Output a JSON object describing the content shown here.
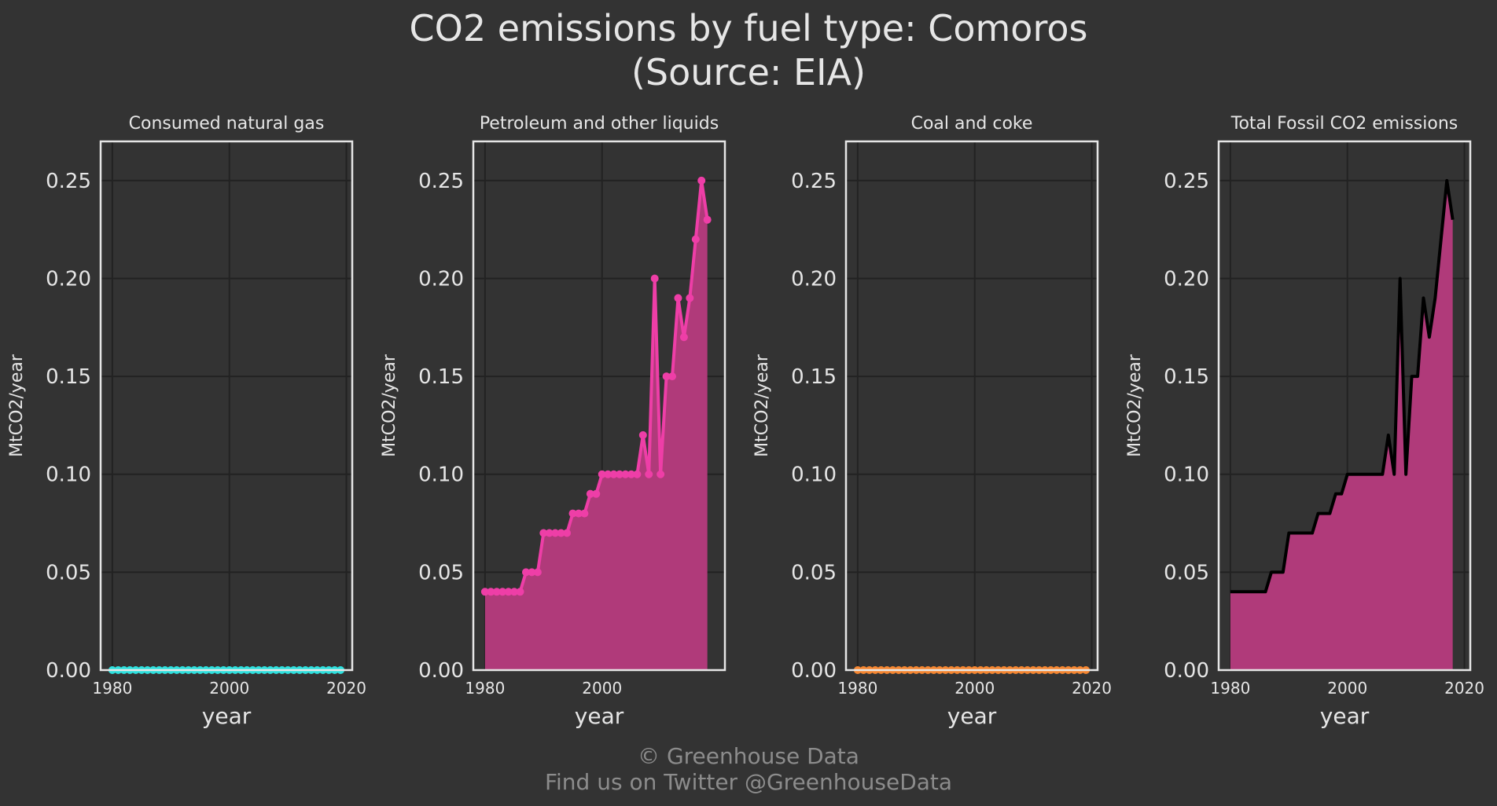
{
  "figure": {
    "title_line1": "CO2 emissions by fuel type: Comoros",
    "title_line2": "(Source: EIA)",
    "footer_line1": "© Greenhouse Data",
    "footer_line2": "Find us on Twitter @GreenhouseData"
  },
  "colors": {
    "background": "#333333",
    "grid": "#222222",
    "frame": "#e6e6e6",
    "natural_gas": "#2ee0de",
    "petroleum": "#ee3ea7",
    "petroleum_fill": "#b03a7a",
    "coal": "#f58631",
    "total_line": "#000000",
    "total_fill": "#b03a7a"
  },
  "chart_data": [
    {
      "type": "line",
      "title": "Consumed natural gas",
      "xlabel": "year",
      "ylabel": "MtCO2/year",
      "xlim": [
        1978,
        2021
      ],
      "ylim": [
        0,
        0.27
      ],
      "xticks": [
        1980,
        2000,
        2020
      ],
      "xtick_labels": [
        "1980",
        "2000",
        "2020"
      ],
      "yticks": [
        0,
        0.05,
        0.1,
        0.15,
        0.2,
        0.25
      ],
      "ytick_labels": [
        "0.00",
        "0.05",
        "0.10",
        "0.15",
        "0.20",
        "0.25"
      ],
      "grid": true,
      "color": "natural_gas",
      "markers": true,
      "fill": false,
      "x": [
        1980,
        1981,
        1982,
        1983,
        1984,
        1985,
        1986,
        1987,
        1988,
        1989,
        1990,
        1991,
        1992,
        1993,
        1994,
        1995,
        1996,
        1997,
        1998,
        1999,
        2000,
        2001,
        2002,
        2003,
        2004,
        2005,
        2006,
        2007,
        2008,
        2009,
        2010,
        2011,
        2012,
        2013,
        2014,
        2015,
        2016,
        2017,
        2018,
        2019
      ],
      "y": [
        0,
        0,
        0,
        0,
        0,
        0,
        0,
        0,
        0,
        0,
        0,
        0,
        0,
        0,
        0,
        0,
        0,
        0,
        0,
        0,
        0,
        0,
        0,
        0,
        0,
        0,
        0,
        0,
        0,
        0,
        0,
        0,
        0,
        0,
        0,
        0,
        0,
        0,
        0,
        0
      ]
    },
    {
      "type": "area",
      "title": "Petroleum and other liquids",
      "xlabel": "year",
      "ylabel": "MtCO2/year",
      "xlim": [
        1978,
        2021
      ],
      "ylim": [
        0,
        0.27
      ],
      "xticks": [
        1980,
        2000
      ],
      "xtick_labels": [
        "1980",
        "2000"
      ],
      "yticks": [
        0,
        0.05,
        0.1,
        0.15,
        0.2,
        0.25
      ],
      "ytick_labels": [
        "0.00",
        "0.05",
        "0.10",
        "0.15",
        "0.20",
        "0.25"
      ],
      "grid": true,
      "color": "petroleum",
      "fill_color": "petroleum_fill",
      "markers": true,
      "fill": true,
      "x": [
        1980,
        1981,
        1982,
        1983,
        1984,
        1985,
        1986,
        1987,
        1988,
        1989,
        1990,
        1991,
        1992,
        1993,
        1994,
        1995,
        1996,
        1997,
        1998,
        1999,
        2000,
        2001,
        2002,
        2003,
        2004,
        2005,
        2006,
        2007,
        2008,
        2009,
        2010,
        2011,
        2012,
        2013,
        2014,
        2015,
        2016,
        2017,
        2018
      ],
      "y": [
        0.04,
        0.04,
        0.04,
        0.04,
        0.04,
        0.04,
        0.04,
        0.05,
        0.05,
        0.05,
        0.07,
        0.07,
        0.07,
        0.07,
        0.07,
        0.08,
        0.08,
        0.08,
        0.09,
        0.09,
        0.1,
        0.1,
        0.1,
        0.1,
        0.1,
        0.1,
        0.1,
        0.12,
        0.1,
        0.2,
        0.1,
        0.15,
        0.15,
        0.19,
        0.17,
        0.19,
        0.22,
        0.25,
        0.23
      ]
    },
    {
      "type": "line",
      "title": "Coal and coke",
      "xlabel": "year",
      "ylabel": "MtCO2/year",
      "xlim": [
        1978,
        2021
      ],
      "ylim": [
        0,
        0.27
      ],
      "xticks": [
        1980,
        2000,
        2020
      ],
      "xtick_labels": [
        "1980",
        "2000",
        "2020"
      ],
      "yticks": [
        0,
        0.05,
        0.1,
        0.15,
        0.2,
        0.25
      ],
      "ytick_labels": [
        "0.00",
        "0.05",
        "0.10",
        "0.15",
        "0.20",
        "0.25"
      ],
      "grid": true,
      "color": "coal",
      "markers": true,
      "fill": false,
      "x": [
        1980,
        1981,
        1982,
        1983,
        1984,
        1985,
        1986,
        1987,
        1988,
        1989,
        1990,
        1991,
        1992,
        1993,
        1994,
        1995,
        1996,
        1997,
        1998,
        1999,
        2000,
        2001,
        2002,
        2003,
        2004,
        2005,
        2006,
        2007,
        2008,
        2009,
        2010,
        2011,
        2012,
        2013,
        2014,
        2015,
        2016,
        2017,
        2018,
        2019
      ],
      "y": [
        0,
        0,
        0,
        0,
        0,
        0,
        0,
        0,
        0,
        0,
        0,
        0,
        0,
        0,
        0,
        0,
        0,
        0,
        0,
        0,
        0,
        0,
        0,
        0,
        0,
        0,
        0,
        0,
        0,
        0,
        0,
        0,
        0,
        0,
        0,
        0,
        0,
        0,
        0,
        0
      ]
    },
    {
      "type": "area",
      "title": "Total Fossil CO2 emissions",
      "xlabel": "year",
      "ylabel": "MtCO2/year",
      "xlim": [
        1978,
        2021
      ],
      "ylim": [
        0,
        0.27
      ],
      "xticks": [
        1980,
        2000,
        2020
      ],
      "xtick_labels": [
        "1980",
        "2000",
        "2020"
      ],
      "yticks": [
        0,
        0.05,
        0.1,
        0.15,
        0.2,
        0.25
      ],
      "ytick_labels": [
        "0.00",
        "0.05",
        "0.10",
        "0.15",
        "0.20",
        "0.25"
      ],
      "grid": true,
      "color": "total_line",
      "fill_color": "total_fill",
      "markers": false,
      "fill": true,
      "x": [
        1980,
        1981,
        1982,
        1983,
        1984,
        1985,
        1986,
        1987,
        1988,
        1989,
        1990,
        1991,
        1992,
        1993,
        1994,
        1995,
        1996,
        1997,
        1998,
        1999,
        2000,
        2001,
        2002,
        2003,
        2004,
        2005,
        2006,
        2007,
        2008,
        2009,
        2010,
        2011,
        2012,
        2013,
        2014,
        2015,
        2016,
        2017,
        2018
      ],
      "y": [
        0.04,
        0.04,
        0.04,
        0.04,
        0.04,
        0.04,
        0.04,
        0.05,
        0.05,
        0.05,
        0.07,
        0.07,
        0.07,
        0.07,
        0.07,
        0.08,
        0.08,
        0.08,
        0.09,
        0.09,
        0.1,
        0.1,
        0.1,
        0.1,
        0.1,
        0.1,
        0.1,
        0.12,
        0.1,
        0.2,
        0.1,
        0.15,
        0.15,
        0.19,
        0.17,
        0.19,
        0.22,
        0.25,
        0.23
      ]
    }
  ]
}
